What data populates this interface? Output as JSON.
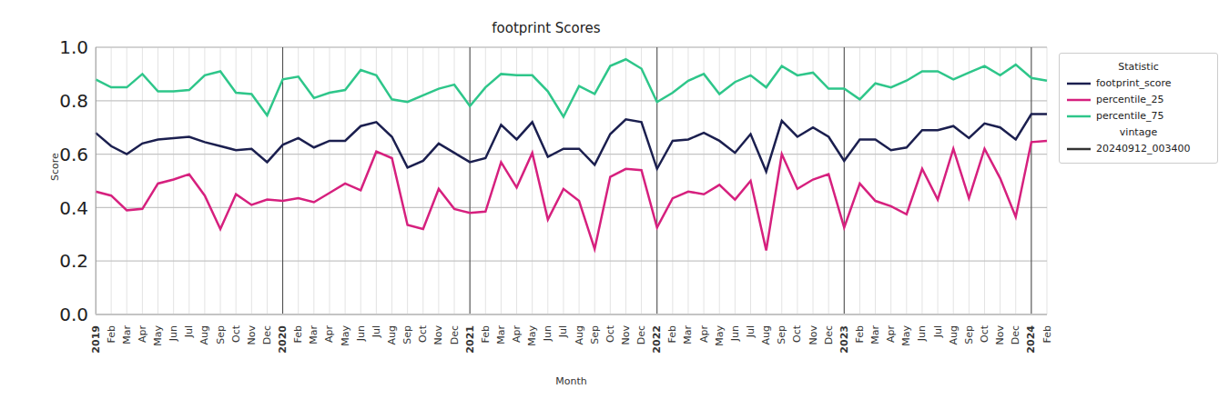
{
  "chart_data": {
    "type": "line",
    "title": "footprint Scores",
    "x_label": "Month",
    "y_label": "Score",
    "categories": [
      "2019",
      "Feb",
      "Mar",
      "Apr",
      "May",
      "Jun",
      "Jul",
      "Aug",
      "Sep",
      "Oct",
      "Nov",
      "Dec",
      "2020",
      "Feb",
      "Mar",
      "Apr",
      "May",
      "Jun",
      "Jul",
      "Aug",
      "Sep",
      "Oct",
      "Nov",
      "Dec",
      "2021",
      "Feb",
      "Mar",
      "Apr",
      "May",
      "Jun",
      "Jul",
      "Aug",
      "Sep",
      "Oct",
      "Nov",
      "Dec",
      "2022",
      "Feb",
      "Mar",
      "Apr",
      "May",
      "Jun",
      "Jul",
      "Aug",
      "Sep",
      "Oct",
      "Nov",
      "Dec",
      "2023",
      "Feb",
      "Mar",
      "Apr",
      "May",
      "Jun",
      "Jul",
      "Aug",
      "Sep",
      "Oct",
      "Nov",
      "Dec",
      "2024",
      "Feb"
    ],
    "series": [
      {
        "name": "footprint_score",
        "color": "#1b1f4f",
        "values": [
          0.68,
          0.63,
          0.6,
          0.64,
          0.655,
          0.66,
          0.665,
          0.645,
          0.63,
          0.615,
          0.62,
          0.57,
          0.635,
          0.66,
          0.625,
          0.65,
          0.65,
          0.705,
          0.72,
          0.665,
          0.55,
          0.575,
          0.64,
          0.605,
          0.57,
          0.585,
          0.71,
          0.655,
          0.72,
          0.59,
          0.62,
          0.62,
          0.56,
          0.675,
          0.73,
          0.72,
          0.545,
          0.65,
          0.655,
          0.68,
          0.65,
          0.605,
          0.675,
          0.535,
          0.725,
          0.665,
          0.7,
          0.665,
          0.575,
          0.655,
          0.655,
          0.615,
          0.625,
          0.69,
          0.69,
          0.705,
          0.66,
          0.715,
          0.7,
          0.655,
          0.75,
          0.75
        ]
      },
      {
        "name": "percentile_25",
        "color": "#d6207e",
        "values": [
          0.46,
          0.445,
          0.39,
          0.395,
          0.49,
          0.505,
          0.525,
          0.445,
          0.32,
          0.45,
          0.41,
          0.43,
          0.425,
          0.435,
          0.42,
          0.455,
          0.49,
          0.465,
          0.61,
          0.585,
          0.335,
          0.32,
          0.47,
          0.395,
          0.38,
          0.385,
          0.57,
          0.475,
          0.605,
          0.355,
          0.47,
          0.425,
          0.245,
          0.515,
          0.545,
          0.54,
          0.325,
          0.435,
          0.46,
          0.45,
          0.485,
          0.43,
          0.5,
          0.24,
          0.6,
          0.47,
          0.505,
          0.525,
          0.325,
          0.49,
          0.425,
          0.405,
          0.375,
          0.545,
          0.43,
          0.62,
          0.435,
          0.62,
          0.51,
          0.365,
          0.645,
          0.65
        ]
      },
      {
        "name": "percentile_75",
        "color": "#2ec68a",
        "values": [
          0.88,
          0.85,
          0.85,
          0.9,
          0.835,
          0.835,
          0.84,
          0.895,
          0.91,
          0.83,
          0.825,
          0.745,
          0.88,
          0.89,
          0.81,
          0.83,
          0.84,
          0.915,
          0.895,
          0.805,
          0.795,
          0.82,
          0.845,
          0.86,
          0.78,
          0.85,
          0.9,
          0.895,
          0.895,
          0.835,
          0.74,
          0.855,
          0.825,
          0.93,
          0.955,
          0.92,
          0.795,
          0.83,
          0.875,
          0.9,
          0.825,
          0.87,
          0.895,
          0.85,
          0.93,
          0.895,
          0.905,
          0.845,
          0.845,
          0.805,
          0.865,
          0.85,
          0.875,
          0.91,
          0.91,
          0.88,
          0.905,
          0.93,
          0.895,
          0.935,
          0.885,
          0.875
        ]
      }
    ],
    "legend_title": "Statistic",
    "vintage": {
      "title": "vintage",
      "label": "20240912_003400",
      "color": "#333333"
    },
    "ylim": [
      0,
      1
    ],
    "yticks": [
      {
        "value": 0,
        "label": "0.0"
      },
      0.2,
      0.4,
      0.6,
      0.8,
      {
        "value": 1,
        "label": "1.0"
      }
    ],
    "grid": true,
    "legend": "upper right"
  }
}
